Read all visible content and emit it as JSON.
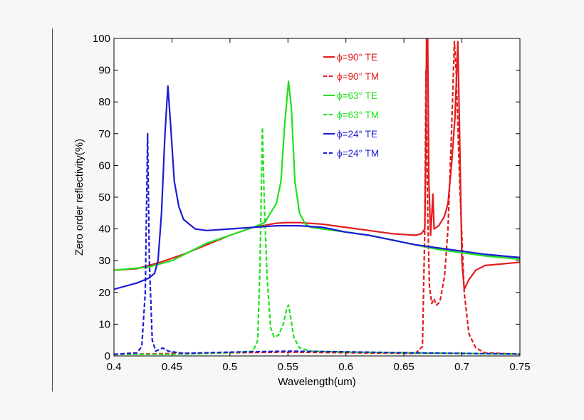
{
  "chart_data": {
    "type": "line",
    "title": "",
    "xlabel": "Wavelength(um)",
    "ylabel": "Zero order reflectivity(%)",
    "xlim": [
      0.4,
      0.75
    ],
    "ylim": [
      0,
      100
    ],
    "x_ticks": [
      "0.4",
      "0.45",
      "0.5",
      "0.55",
      "0.6",
      "0.65",
      "0.7",
      "0.75"
    ],
    "y_ticks": [
      "0",
      "10",
      "20",
      "30",
      "40",
      "50",
      "60",
      "70",
      "80",
      "90",
      "100"
    ],
    "grid": false,
    "legend_position": "top-right",
    "series": [
      {
        "name": "ϕ=90° TE",
        "color": "#e41a1c",
        "dash": "solid",
        "points": [
          [
            0.4,
            27
          ],
          [
            0.42,
            27.5
          ],
          [
            0.44,
            29.5
          ],
          [
            0.46,
            32
          ],
          [
            0.48,
            35
          ],
          [
            0.5,
            38
          ],
          [
            0.52,
            40.5
          ],
          [
            0.54,
            41.8
          ],
          [
            0.55,
            42
          ],
          [
            0.56,
            42
          ],
          [
            0.58,
            41.5
          ],
          [
            0.6,
            40.5
          ],
          [
            0.62,
            39.5
          ],
          [
            0.64,
            38.5
          ],
          [
            0.66,
            38
          ],
          [
            0.665,
            38.5
          ],
          [
            0.668,
            40
          ],
          [
            0.669,
            70
          ],
          [
            0.6695,
            100
          ],
          [
            0.6705,
            100
          ],
          [
            0.6715,
            55
          ],
          [
            0.673,
            38
          ],
          [
            0.675,
            51
          ],
          [
            0.676,
            40
          ],
          [
            0.68,
            41
          ],
          [
            0.685,
            44
          ],
          [
            0.688,
            48
          ],
          [
            0.691,
            60
          ],
          [
            0.694,
            75
          ],
          [
            0.6965,
            99
          ],
          [
            0.698,
            70
          ],
          [
            0.7,
            30
          ],
          [
            0.702,
            21
          ],
          [
            0.706,
            24
          ],
          [
            0.712,
            27
          ],
          [
            0.72,
            28.5
          ],
          [
            0.735,
            29
          ],
          [
            0.75,
            29.5
          ]
        ]
      },
      {
        "name": "ϕ=90° TM",
        "color": "#e41a1c",
        "dash": "dashed",
        "points": [
          [
            0.4,
            0.5
          ],
          [
            0.5,
            1
          ],
          [
            0.55,
            1.2
          ],
          [
            0.6,
            1
          ],
          [
            0.66,
            0.8
          ],
          [
            0.666,
            3
          ],
          [
            0.668,
            40
          ],
          [
            0.669,
            90
          ],
          [
            0.6705,
            45
          ],
          [
            0.672,
            22
          ],
          [
            0.674,
            16.5
          ],
          [
            0.676,
            18
          ],
          [
            0.678,
            16
          ],
          [
            0.681,
            17
          ],
          [
            0.685,
            25
          ],
          [
            0.688,
            40
          ],
          [
            0.691,
            70
          ],
          [
            0.6935,
            99
          ],
          [
            0.695,
            90
          ],
          [
            0.698,
            55
          ],
          [
            0.702,
            20
          ],
          [
            0.706,
            7
          ],
          [
            0.712,
            2.5
          ],
          [
            0.72,
            1
          ],
          [
            0.75,
            0.5
          ]
        ]
      },
      {
        "name": "ϕ=63° TE",
        "color": "#21e021",
        "dash": "solid",
        "points": [
          [
            0.4,
            27
          ],
          [
            0.43,
            28
          ],
          [
            0.45,
            30
          ],
          [
            0.48,
            35.5
          ],
          [
            0.5,
            38
          ],
          [
            0.52,
            40.5
          ],
          [
            0.53,
            42
          ],
          [
            0.535,
            45
          ],
          [
            0.54,
            48
          ],
          [
            0.544,
            55
          ],
          [
            0.547,
            72
          ],
          [
            0.5505,
            86.5
          ],
          [
            0.553,
            78
          ],
          [
            0.556,
            55
          ],
          [
            0.56,
            45
          ],
          [
            0.565,
            41.5
          ],
          [
            0.57,
            40.5
          ],
          [
            0.6,
            39
          ],
          [
            0.62,
            38
          ],
          [
            0.64,
            36.5
          ],
          [
            0.66,
            35
          ],
          [
            0.68,
            33.5
          ],
          [
            0.7,
            32.5
          ],
          [
            0.72,
            31.5
          ],
          [
            0.75,
            30.5
          ]
        ]
      },
      {
        "name": "ϕ=63° TM",
        "color": "#21e021",
        "dash": "dashed",
        "points": [
          [
            0.4,
            0.5
          ],
          [
            0.45,
            0.5
          ],
          [
            0.5,
            1
          ],
          [
            0.52,
            1.5
          ],
          [
            0.524,
            5
          ],
          [
            0.526,
            30
          ],
          [
            0.528,
            72
          ],
          [
            0.5295,
            50
          ],
          [
            0.532,
            25
          ],
          [
            0.535,
            9
          ],
          [
            0.538,
            6
          ],
          [
            0.542,
            6.5
          ],
          [
            0.546,
            10
          ],
          [
            0.549,
            15
          ],
          [
            0.5505,
            16
          ],
          [
            0.552,
            13
          ],
          [
            0.555,
            6
          ],
          [
            0.56,
            2.5
          ],
          [
            0.57,
            1.5
          ],
          [
            0.6,
            1.2
          ],
          [
            0.65,
            1
          ],
          [
            0.7,
            0.8
          ],
          [
            0.75,
            0.5
          ]
        ]
      },
      {
        "name": "ϕ=24° TE",
        "color": "#1c1cd6",
        "dash": "solid",
        "points": [
          [
            0.4,
            21
          ],
          [
            0.42,
            23
          ],
          [
            0.43,
            24.5
          ],
          [
            0.435,
            26
          ],
          [
            0.438,
            30
          ],
          [
            0.441,
            45
          ],
          [
            0.444,
            70
          ],
          [
            0.4465,
            85
          ],
          [
            0.449,
            72
          ],
          [
            0.452,
            55
          ],
          [
            0.456,
            47
          ],
          [
            0.46,
            43
          ],
          [
            0.47,
            40
          ],
          [
            0.48,
            39.5
          ],
          [
            0.5,
            40
          ],
          [
            0.52,
            40.5
          ],
          [
            0.54,
            41
          ],
          [
            0.56,
            41
          ],
          [
            0.58,
            40.5
          ],
          [
            0.6,
            39
          ],
          [
            0.62,
            38
          ],
          [
            0.64,
            36.5
          ],
          [
            0.66,
            35
          ],
          [
            0.68,
            34
          ],
          [
            0.7,
            33
          ],
          [
            0.72,
            32
          ],
          [
            0.75,
            31
          ]
        ]
      },
      {
        "name": "ϕ=24° TM",
        "color": "#1c1cd6",
        "dash": "dashed",
        "points": [
          [
            0.4,
            0.5
          ],
          [
            0.42,
            1
          ],
          [
            0.424,
            3
          ],
          [
            0.427,
            20
          ],
          [
            0.429,
            70
          ],
          [
            0.4305,
            30
          ],
          [
            0.433,
            5
          ],
          [
            0.436,
            1.5
          ],
          [
            0.442,
            2.5
          ],
          [
            0.447,
            1.5
          ],
          [
            0.46,
            0.8
          ],
          [
            0.5,
            1.2
          ],
          [
            0.55,
            1.5
          ],
          [
            0.6,
            1.3
          ],
          [
            0.65,
            1
          ],
          [
            0.7,
            0.8
          ],
          [
            0.75,
            0.6
          ]
        ]
      }
    ]
  }
}
